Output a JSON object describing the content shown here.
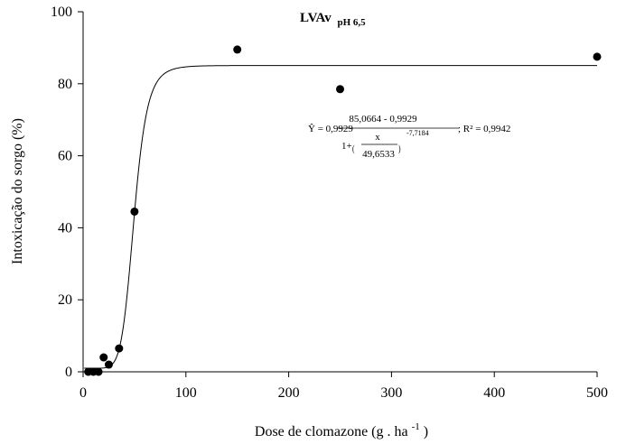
{
  "chart_data": {
    "type": "scatter",
    "title": "LVAv",
    "title_subscript": "pH 6,5",
    "xlabel": "Dose de clomazone (g . ha",
    "xlabel_superscript": "-1",
    "xlabel_suffix": ")",
    "ylabel": "Intoxicação do sorgo (%)",
    "xlim": [
      0,
      500
    ],
    "ylim": [
      0,
      100
    ],
    "xticks": [
      0,
      100,
      200,
      300,
      400,
      500
    ],
    "yticks": [
      0,
      20,
      40,
      60,
      80,
      100
    ],
    "grid": false,
    "points": [
      {
        "x": 5,
        "y": 0
      },
      {
        "x": 10,
        "y": 0
      },
      {
        "x": 15,
        "y": 0
      },
      {
        "x": 20,
        "y": 4
      },
      {
        "x": 25,
        "y": 2
      },
      {
        "x": 35,
        "y": 6.5
      },
      {
        "x": 50,
        "y": 44.5
      },
      {
        "x": 150,
        "y": 89.5
      },
      {
        "x": 250,
        "y": 78.5
      },
      {
        "x": 500,
        "y": 87.5
      }
    ],
    "fit": {
      "model": "log-logistic",
      "bottom": 0.9929,
      "top": 85.0664,
      "x50": 49.6533,
      "slope": -7.7184,
      "r2": 0.9942
    },
    "equation": {
      "lhs": "Ŷ = 0,9929",
      "numerator": "85,0664 - 0,9929",
      "denominator_prefix": "1+",
      "inner_numerator": "x",
      "inner_denominator": "49,6533",
      "exponent": "-7,7184",
      "r2_text": "; R² = 0,9942"
    }
  }
}
